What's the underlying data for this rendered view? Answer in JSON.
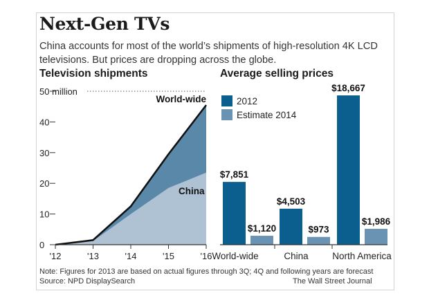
{
  "headline": "Next-Gen TVs",
  "dek": "China accounts for most of the world’s shipments of high-resolution 4K LCD televisions. But prices are dropping across the globe.",
  "footnote": "Note: Figures for 2013 are based on actual figures through 3Q; 4Q and following years are forecast",
  "source": "Source: NPD DisplaySearch",
  "credit": "The Wall Street Journal",
  "colors": {
    "dark_blue": "#0b5f8e",
    "medium_blue": "#5a88a9",
    "light_blue": "#aec2d3",
    "line": "#111111",
    "bar_light": "#6a93b3"
  },
  "chart_data": [
    {
      "type": "area",
      "title": "Television shipments",
      "x": [
        "'12",
        "'13",
        "'14",
        "'15",
        "'16"
      ],
      "xlabel": "",
      "ylabel": "",
      "ylim": [
        0,
        50
      ],
      "yticks": [
        "0",
        "10",
        "20",
        "30",
        "40",
        "50 million"
      ],
      "grid": false,
      "series": [
        {
          "name": "World-wide",
          "values": [
            0,
            1.5,
            12.5,
            29.5,
            45.5
          ]
        },
        {
          "name": "China",
          "values": [
            0,
            1.2,
            10,
            18.5,
            23.5
          ]
        }
      ]
    },
    {
      "type": "bar",
      "title": "Average selling prices",
      "categories": [
        "World-wide",
        "China",
        "North America"
      ],
      "ylim": [
        0,
        20000
      ],
      "legend": "top-left",
      "grid": false,
      "series": [
        {
          "name": "2012",
          "values": [
            7851,
            4503,
            18667
          ],
          "labels": [
            "$7,851",
            "$4,503",
            "$18,667"
          ]
        },
        {
          "name": "Estimate 2014",
          "values": [
            1120,
            973,
            1986
          ],
          "labels": [
            "$1,120",
            "$973",
            "$1,986"
          ]
        }
      ]
    }
  ]
}
